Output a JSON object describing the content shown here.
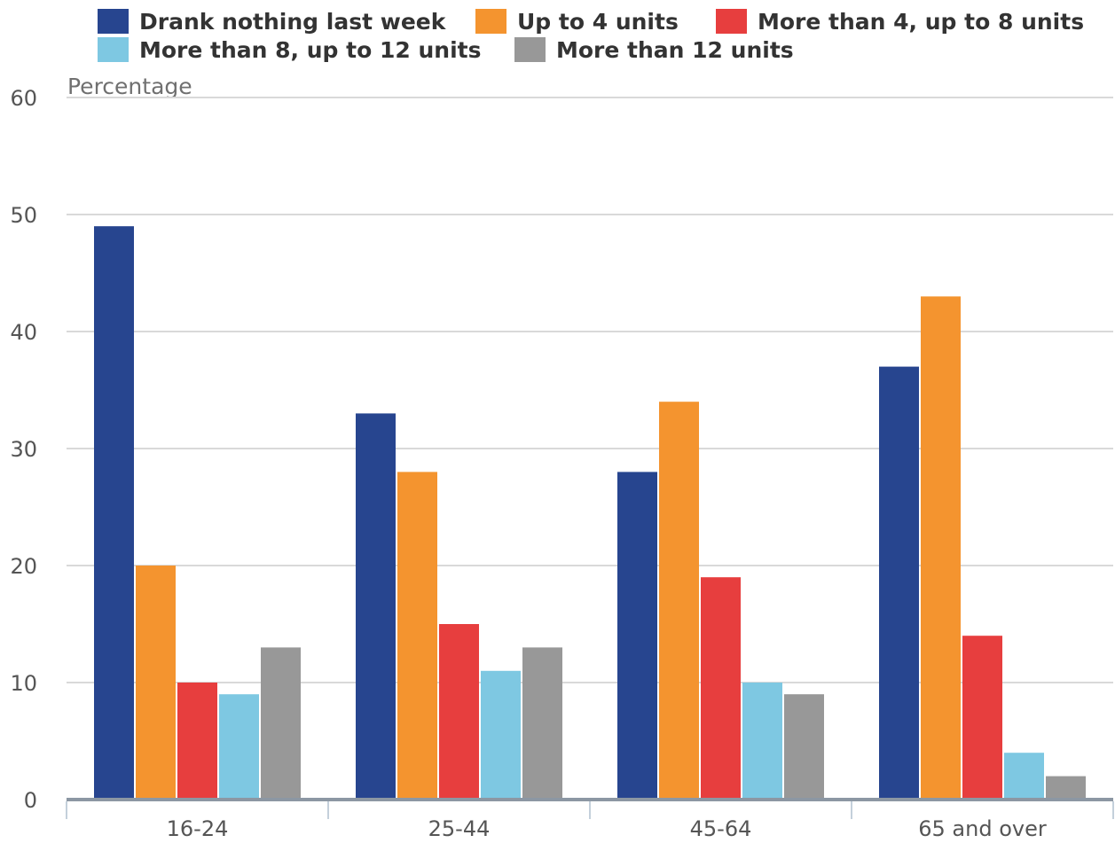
{
  "chart_data": {
    "type": "bar",
    "ylabel": "Percentage",
    "ylim": [
      0,
      60
    ],
    "yticks": [
      0,
      10,
      20,
      30,
      40,
      50,
      60
    ],
    "grid": true,
    "legend_position": "top",
    "categories": [
      "16-24",
      "25-44",
      "45-64",
      "65 and over"
    ],
    "series": [
      {
        "name": "Drank nothing last week",
        "color": "#27458f",
        "values": [
          49,
          33,
          28,
          37
        ]
      },
      {
        "name": "Up to 4 units",
        "color": "#f4942f",
        "values": [
          20,
          28,
          34,
          43
        ]
      },
      {
        "name": "More than 4, up to 8 units",
        "color": "#e73e3e",
        "values": [
          10,
          15,
          19,
          14
        ]
      },
      {
        "name": "More than 8, up to 12 units",
        "color": "#7ec8e2",
        "values": [
          9,
          11,
          10,
          4
        ]
      },
      {
        "name": "More than 12 units",
        "color": "#989898",
        "values": [
          13,
          13,
          9,
          2
        ]
      }
    ]
  }
}
